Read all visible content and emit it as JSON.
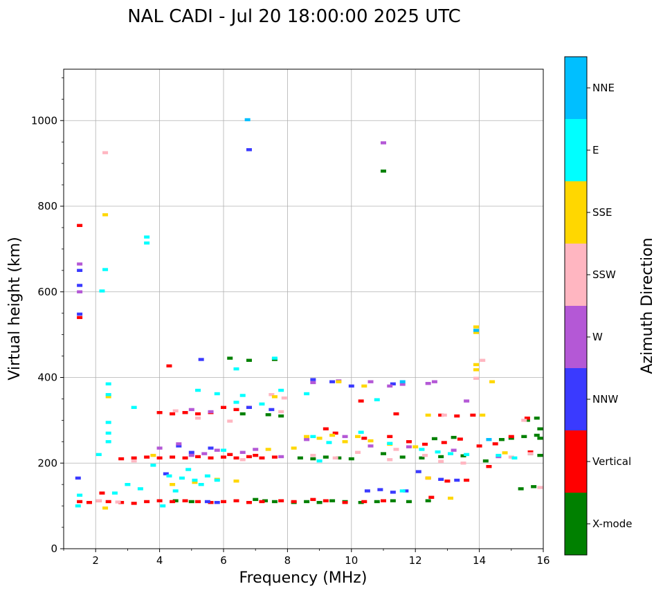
{
  "chart_data": {
    "type": "scatter",
    "title": "NAL CADI - Jul 20 18:00:00 2025 UTC",
    "xlabel": "Frequency (MHz)",
    "ylabel": "Virtual height (km)",
    "xlim": [
      1,
      16
    ],
    "ylim": [
      0,
      1120
    ],
    "xticks": [
      2,
      4,
      6,
      8,
      10,
      12,
      14,
      16
    ],
    "yticks": [
      0,
      200,
      400,
      600,
      800,
      1000
    ],
    "grid": true,
    "colorbar": {
      "label": "Azimuth Direction",
      "categories": [
        {
          "name": "X-mode",
          "color": "#008000"
        },
        {
          "name": "Vertical",
          "color": "#ff0000"
        },
        {
          "name": "NNW",
          "color": "#3a3aff"
        },
        {
          "name": "W",
          "color": "#b458d6"
        },
        {
          "name": "SSW",
          "color": "#ffb6c1"
        },
        {
          "name": "SSE",
          "color": "#ffd700"
        },
        {
          "name": "E",
          "color": "#00ffff"
        },
        {
          "name": "NNE",
          "color": "#00bfff"
        }
      ]
    },
    "series": [
      {
        "name": "X-mode",
        "points": [
          [
            7.0,
            115
          ],
          [
            7.3,
            112
          ],
          [
            7.6,
            110
          ],
          [
            8.2,
            108
          ],
          [
            8.6,
            110
          ],
          [
            9.0,
            108
          ],
          [
            9.4,
            112
          ],
          [
            9.8,
            110
          ],
          [
            10.3,
            108
          ],
          [
            10.8,
            110
          ],
          [
            11.3,
            112
          ],
          [
            11.8,
            110
          ],
          [
            12.4,
            112
          ],
          [
            7.4,
            313
          ],
          [
            7.8,
            310
          ],
          [
            6.6,
            315
          ],
          [
            8.4,
            212
          ],
          [
            8.8,
            210
          ],
          [
            9.2,
            214
          ],
          [
            9.6,
            212
          ],
          [
            10.0,
            210
          ],
          [
            11.0,
            222
          ],
          [
            11.6,
            214
          ],
          [
            12.2,
            212
          ],
          [
            12.8,
            215
          ],
          [
            13.5,
            217
          ],
          [
            14.2,
            205
          ],
          [
            14.7,
            255
          ],
          [
            15.0,
            258
          ],
          [
            15.4,
            262
          ],
          [
            15.8,
            265
          ],
          [
            15.9,
            258
          ],
          [
            15.9,
            280
          ],
          [
            15.5,
            300
          ],
          [
            15.8,
            305
          ],
          [
            15.6,
            222
          ],
          [
            15.9,
            218
          ],
          [
            15.3,
            140
          ],
          [
            15.7,
            145
          ],
          [
            13.2,
            260
          ],
          [
            12.6,
            257
          ],
          [
            11.0,
            882
          ],
          [
            6.2,
            445
          ],
          [
            6.8,
            440
          ],
          [
            7.6,
            442
          ],
          [
            4.5,
            112
          ],
          [
            5.0,
            110
          ]
        ]
      },
      {
        "name": "Vertical",
        "points": [
          [
            1.5,
            110
          ],
          [
            1.8,
            108
          ],
          [
            2.1,
            112
          ],
          [
            2.4,
            110
          ],
          [
            2.8,
            108
          ],
          [
            3.2,
            106
          ],
          [
            3.6,
            110
          ],
          [
            4.0,
            112
          ],
          [
            4.4,
            110
          ],
          [
            4.8,
            112
          ],
          [
            5.2,
            110
          ],
          [
            5.6,
            108
          ],
          [
            6.0,
            110
          ],
          [
            6.4,
            112
          ],
          [
            6.8,
            108
          ],
          [
            7.2,
            110
          ],
          [
            7.8,
            112
          ],
          [
            8.2,
            110
          ],
          [
            8.8,
            115
          ],
          [
            9.2,
            112
          ],
          [
            9.8,
            108
          ],
          [
            10.4,
            110
          ],
          [
            11.0,
            112
          ],
          [
            2.8,
            210
          ],
          [
            3.2,
            212
          ],
          [
            3.6,
            214
          ],
          [
            4.0,
            212
          ],
          [
            4.4,
            214
          ],
          [
            4.8,
            212
          ],
          [
            5.2,
            215
          ],
          [
            5.6,
            212
          ],
          [
            6.0,
            214
          ],
          [
            6.4,
            212
          ],
          [
            6.8,
            215
          ],
          [
            7.2,
            212
          ],
          [
            7.6,
            214
          ],
          [
            4.0,
            318
          ],
          [
            4.4,
            315
          ],
          [
            4.8,
            318
          ],
          [
            5.2,
            315
          ],
          [
            5.6,
            318
          ],
          [
            6.0,
            330
          ],
          [
            6.4,
            325
          ],
          [
            6.8,
            330
          ],
          [
            1.5,
            755
          ],
          [
            1.5,
            540
          ],
          [
            4.3,
            427
          ],
          [
            10.4,
            258
          ],
          [
            11.2,
            262
          ],
          [
            11.8,
            250
          ],
          [
            12.3,
            244
          ],
          [
            12.9,
            248
          ],
          [
            13.4,
            256
          ],
          [
            14.0,
            240
          ],
          [
            14.5,
            245
          ],
          [
            15.0,
            262
          ],
          [
            15.6,
            226
          ],
          [
            14.3,
            192
          ],
          [
            12.4,
            165
          ],
          [
            13.0,
            158
          ],
          [
            13.6,
            160
          ],
          [
            12.8,
            312
          ],
          [
            13.3,
            310
          ],
          [
            13.8,
            312
          ],
          [
            15.5,
            305
          ],
          [
            9.2,
            280
          ],
          [
            9.5,
            270
          ],
          [
            10.3,
            345
          ],
          [
            11.4,
            315
          ],
          [
            6.2,
            220
          ],
          [
            7.0,
            218
          ],
          [
            12.5,
            120
          ],
          [
            2.2,
            130
          ]
        ]
      },
      {
        "name": "NNW",
        "points": [
          [
            1.5,
            650
          ],
          [
            1.5,
            615
          ],
          [
            1.5,
            548
          ],
          [
            6.8,
            932
          ],
          [
            5.3,
            442
          ],
          [
            4.2,
            175
          ],
          [
            10.5,
            135
          ],
          [
            10.9,
            138
          ],
          [
            11.3,
            132
          ],
          [
            11.7,
            135
          ],
          [
            12.8,
            162
          ],
          [
            13.3,
            160
          ],
          [
            5.5,
            110
          ],
          [
            5.8,
            108
          ],
          [
            6.8,
            330
          ],
          [
            7.5,
            325
          ],
          [
            8.8,
            395
          ],
          [
            9.4,
            390
          ],
          [
            10.0,
            380
          ],
          [
            11.3,
            385
          ],
          [
            4.6,
            240
          ],
          [
            5.0,
            225
          ],
          [
            5.6,
            235
          ],
          [
            12.1,
            180
          ],
          [
            1.45,
            165
          ]
        ]
      },
      {
        "name": "W",
        "points": [
          [
            1.5,
            665
          ],
          [
            1.5,
            600
          ],
          [
            11.0,
            948
          ],
          [
            4.0,
            235
          ],
          [
            4.6,
            245
          ],
          [
            5.0,
            218
          ],
          [
            5.4,
            222
          ],
          [
            5.8,
            230
          ],
          [
            6.6,
            225
          ],
          [
            7.0,
            232
          ],
          [
            7.8,
            215
          ],
          [
            8.8,
            388
          ],
          [
            9.6,
            392
          ],
          [
            10.6,
            390
          ],
          [
            11.2,
            380
          ],
          [
            11.6,
            384
          ],
          [
            12.4,
            386
          ],
          [
            12.6,
            390
          ],
          [
            13.6,
            345
          ],
          [
            5.0,
            325
          ],
          [
            8.6,
            255
          ],
          [
            9.8,
            262
          ],
          [
            10.6,
            240
          ],
          [
            11.8,
            238
          ],
          [
            13.2,
            230
          ],
          [
            14.6,
            215
          ],
          [
            5.6,
            320
          ]
        ]
      },
      {
        "name": "SSW",
        "points": [
          [
            2.3,
            925
          ],
          [
            4.5,
            322
          ],
          [
            5.2,
            305
          ],
          [
            6.2,
            298
          ],
          [
            7.8,
            320
          ],
          [
            8.8,
            218
          ],
          [
            9.5,
            212
          ],
          [
            10.2,
            225
          ],
          [
            11.2,
            208
          ],
          [
            12.3,
            218
          ],
          [
            12.8,
            204
          ],
          [
            13.5,
            200
          ],
          [
            13.9,
            398
          ],
          [
            14.1,
            440
          ],
          [
            15.0,
            214
          ],
          [
            15.6,
            222
          ],
          [
            15.9,
            143
          ],
          [
            11.4,
            232
          ],
          [
            7.5,
            360
          ],
          [
            7.9,
            352
          ],
          [
            6.6,
            208
          ],
          [
            3.2,
            205
          ],
          [
            12.9,
            312
          ],
          [
            15.4,
            300
          ],
          [
            2.1,
            112
          ],
          [
            2.7,
            109
          ]
        ]
      },
      {
        "name": "SSE",
        "points": [
          [
            2.3,
            780
          ],
          [
            3.8,
            218
          ],
          [
            4.4,
            150
          ],
          [
            5.1,
            155
          ],
          [
            5.8,
            162
          ],
          [
            6.4,
            158
          ],
          [
            7.6,
            355
          ],
          [
            8.6,
            262
          ],
          [
            9.0,
            258
          ],
          [
            9.4,
            265
          ],
          [
            9.8,
            250
          ],
          [
            10.2,
            262
          ],
          [
            11.2,
            244
          ],
          [
            12.0,
            238
          ],
          [
            12.4,
            312
          ],
          [
            13.9,
            518
          ],
          [
            13.9,
            505
          ],
          [
            13.9,
            430
          ],
          [
            13.9,
            418
          ],
          [
            14.4,
            390
          ],
          [
            14.1,
            312
          ],
          [
            14.8,
            224
          ],
          [
            9.6,
            390
          ],
          [
            10.6,
            252
          ],
          [
            2.3,
            95
          ],
          [
            13.1,
            118
          ],
          [
            12.4,
            165
          ],
          [
            8.2,
            235
          ],
          [
            10.4,
            380
          ],
          [
            2.4,
            355
          ],
          [
            7.4,
            232
          ]
        ]
      },
      {
        "name": "E",
        "points": [
          [
            2.3,
            652
          ],
          [
            3.6,
            728
          ],
          [
            3.6,
            714
          ],
          [
            4.3,
            170
          ],
          [
            4.7,
            165
          ],
          [
            5.1,
            160
          ],
          [
            5.5,
            170
          ],
          [
            4.9,
            185
          ],
          [
            5.3,
            150
          ],
          [
            3.0,
            150
          ],
          [
            3.4,
            140
          ],
          [
            2.6,
            130
          ],
          [
            4.1,
            100
          ],
          [
            5.8,
            160
          ],
          [
            2.4,
            385
          ],
          [
            2.4,
            360
          ],
          [
            2.4,
            295
          ],
          [
            2.4,
            270
          ],
          [
            2.4,
            250
          ],
          [
            5.2,
            370
          ],
          [
            5.8,
            362
          ],
          [
            6.6,
            358
          ],
          [
            7.2,
            338
          ],
          [
            7.8,
            370
          ],
          [
            6.4,
            420
          ],
          [
            7.6,
            445
          ],
          [
            8.8,
            262
          ],
          [
            9.3,
            248
          ],
          [
            10.3,
            272
          ],
          [
            11.2,
            246
          ],
          [
            12.2,
            232
          ],
          [
            12.7,
            226
          ],
          [
            13.1,
            222
          ],
          [
            13.6,
            220
          ],
          [
            14.6,
            218
          ],
          [
            15.1,
            212
          ],
          [
            11.6,
            135
          ],
          [
            9.0,
            205
          ],
          [
            3.8,
            195
          ],
          [
            4.5,
            135
          ],
          [
            2.1,
            220
          ],
          [
            2.2,
            602
          ],
          [
            1.5,
            125
          ],
          [
            6.0,
            230
          ],
          [
            6.4,
            342
          ],
          [
            8.6,
            362
          ],
          [
            10.8,
            348
          ],
          [
            1.45,
            100
          ],
          [
            3.2,
            330
          ]
        ]
      },
      {
        "name": "NNE",
        "points": [
          [
            6.75,
            1002
          ],
          [
            11.6,
            390
          ],
          [
            13.9,
            510
          ],
          [
            14.3,
            255
          ]
        ]
      }
    ]
  }
}
